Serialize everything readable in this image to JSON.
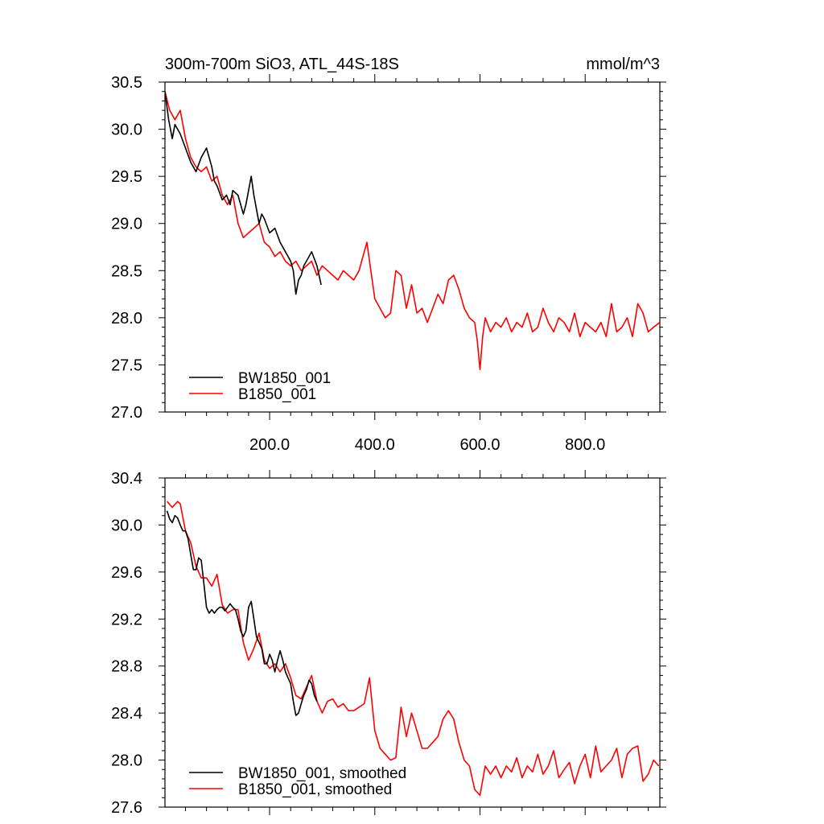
{
  "chart_data": [
    {
      "type": "line",
      "title": "300m-700m SiO3, ATL_44S-18S",
      "units": "mmol/m^3",
      "xlim": [
        1,
        942
      ],
      "ylim": [
        27.0,
        30.5
      ],
      "x_major_ticks": [
        200,
        400,
        600,
        800
      ],
      "x_tick_labels": [
        "200.0",
        "400.0",
        "600.0",
        "800.0"
      ],
      "y_major_ticks": [
        27.0,
        27.5,
        28.0,
        28.5,
        29.0,
        29.5,
        30.0,
        30.5
      ],
      "y_tick_labels": [
        "27.0",
        "27.5",
        "28.0",
        "28.5",
        "29.0",
        "29.5",
        "30.0",
        "30.5"
      ],
      "legend_position": "bottom-left",
      "series": [
        {
          "name": "BW1850_001",
          "color": "#000000",
          "x": [
            1,
            8,
            15,
            20,
            30,
            40,
            50,
            60,
            70,
            80,
            90,
            95,
            100,
            110,
            118,
            125,
            130,
            140,
            150,
            155,
            160,
            165,
            170,
            180,
            185,
            190,
            200,
            210,
            220,
            230,
            240,
            245,
            250,
            255,
            260,
            265,
            270,
            280,
            290,
            298
          ],
          "y": [
            30.4,
            30.1,
            29.9,
            30.05,
            29.95,
            29.8,
            29.65,
            29.55,
            29.7,
            29.8,
            29.6,
            29.45,
            29.4,
            29.25,
            29.3,
            29.2,
            29.35,
            29.3,
            29.1,
            29.2,
            29.35,
            29.5,
            29.3,
            29.0,
            29.1,
            29.05,
            28.9,
            28.95,
            28.8,
            28.7,
            28.6,
            28.5,
            28.25,
            28.4,
            28.45,
            28.55,
            28.6,
            28.7,
            28.55,
            28.35
          ]
        },
        {
          "name": "B1850_001",
          "color": "#ff0000",
          "x": [
            1,
            10,
            20,
            30,
            40,
            50,
            60,
            70,
            80,
            90,
            100,
            110,
            120,
            130,
            140,
            150,
            160,
            170,
            180,
            190,
            200,
            210,
            220,
            230,
            240,
            250,
            260,
            270,
            280,
            290,
            300,
            310,
            320,
            330,
            340,
            350,
            360,
            370,
            380,
            385,
            390,
            400,
            410,
            420,
            430,
            440,
            450,
            460,
            470,
            480,
            490,
            500,
            510,
            520,
            530,
            540,
            550,
            560,
            570,
            580,
            590,
            595,
            600,
            605,
            610,
            620,
            630,
            640,
            650,
            660,
            670,
            680,
            690,
            700,
            710,
            720,
            730,
            740,
            750,
            760,
            770,
            780,
            790,
            800,
            810,
            820,
            830,
            840,
            850,
            860,
            870,
            880,
            890,
            900,
            910,
            920,
            930,
            942
          ],
          "y": [
            30.4,
            30.2,
            30.1,
            30.2,
            29.9,
            29.7,
            29.6,
            29.55,
            29.6,
            29.45,
            29.5,
            29.3,
            29.2,
            29.3,
            29.0,
            28.85,
            28.9,
            28.95,
            29.0,
            28.8,
            28.75,
            28.65,
            28.7,
            28.6,
            28.55,
            28.6,
            28.5,
            28.55,
            28.6,
            28.45,
            28.55,
            28.5,
            28.45,
            28.4,
            28.5,
            28.45,
            28.4,
            28.5,
            28.7,
            28.8,
            28.6,
            28.2,
            28.1,
            28.0,
            28.05,
            28.5,
            28.45,
            28.1,
            28.35,
            28.05,
            28.1,
            27.95,
            28.1,
            28.25,
            28.15,
            28.4,
            28.45,
            28.3,
            28.1,
            28.0,
            27.95,
            27.75,
            27.45,
            27.8,
            28.0,
            27.85,
            27.95,
            27.9,
            28.0,
            27.85,
            27.95,
            27.9,
            28.05,
            27.85,
            27.9,
            28.1,
            27.95,
            27.85,
            28.0,
            27.95,
            27.85,
            28.05,
            27.8,
            27.95,
            27.9,
            27.85,
            27.95,
            27.8,
            28.15,
            27.85,
            27.9,
            28.0,
            27.8,
            28.15,
            28.05,
            27.85,
            27.9,
            27.95
          ]
        }
      ]
    },
    {
      "type": "line",
      "xlim": [
        1,
        942
      ],
      "ylim": [
        27.6,
        30.4
      ],
      "x_major_ticks": [
        200,
        400,
        600,
        800
      ],
      "y_major_ticks": [
        27.6,
        28.0,
        28.4,
        28.8,
        29.2,
        29.6,
        30.0,
        30.4
      ],
      "y_tick_labels": [
        "27.6",
        "28.0",
        "28.4",
        "28.8",
        "29.2",
        "29.6",
        "30.0",
        "30.4"
      ],
      "legend_position": "bottom-left",
      "series": [
        {
          "name": "BW1850_001, smoothed",
          "color": "#000000",
          "x": [
            5,
            10,
            15,
            20,
            25,
            30,
            35,
            40,
            45,
            50,
            55,
            60,
            65,
            70,
            75,
            80,
            85,
            90,
            95,
            100,
            105,
            110,
            115,
            120,
            125,
            130,
            135,
            140,
            145,
            150,
            155,
            160,
            165,
            170,
            175,
            180,
            185,
            190,
            195,
            200,
            205,
            210,
            215,
            220,
            225,
            230,
            235,
            240,
            245,
            250,
            255,
            260,
            265,
            270,
            275,
            280,
            285,
            290
          ],
          "y": [
            30.12,
            30.05,
            30.02,
            30.08,
            30.06,
            30.0,
            29.95,
            29.95,
            29.88,
            29.75,
            29.62,
            29.62,
            29.72,
            29.7,
            29.5,
            29.3,
            29.25,
            29.28,
            29.25,
            29.28,
            29.3,
            29.3,
            29.27,
            29.3,
            29.33,
            29.3,
            29.28,
            29.2,
            29.1,
            29.05,
            29.1,
            29.3,
            29.35,
            29.2,
            29.05,
            29.0,
            28.95,
            28.82,
            28.82,
            28.9,
            28.85,
            28.75,
            28.85,
            28.93,
            28.85,
            28.75,
            28.7,
            28.65,
            28.5,
            28.38,
            28.4,
            28.48,
            28.55,
            28.6,
            28.68,
            28.65,
            28.55,
            28.5
          ]
        },
        {
          "name": "B1850_001, smoothed",
          "color": "#ff0000",
          "x": [
            5,
            15,
            25,
            30,
            40,
            50,
            60,
            70,
            80,
            90,
            100,
            110,
            120,
            130,
            140,
            150,
            160,
            170,
            180,
            190,
            200,
            210,
            220,
            230,
            240,
            250,
            260,
            270,
            280,
            290,
            300,
            310,
            320,
            330,
            340,
            350,
            360,
            370,
            380,
            390,
            400,
            410,
            420,
            430,
            440,
            450,
            460,
            470,
            480,
            490,
            500,
            510,
            520,
            530,
            540,
            550,
            560,
            570,
            580,
            590,
            600,
            610,
            620,
            630,
            640,
            650,
            660,
            670,
            680,
            690,
            700,
            710,
            720,
            730,
            740,
            750,
            760,
            770,
            780,
            790,
            800,
            810,
            820,
            830,
            840,
            850,
            860,
            870,
            880,
            890,
            900,
            910,
            920,
            930,
            940
          ],
          "y": [
            30.2,
            30.15,
            30.2,
            30.18,
            29.95,
            29.85,
            29.65,
            29.55,
            29.55,
            29.48,
            29.58,
            29.32,
            29.25,
            29.28,
            29.28,
            29.0,
            28.85,
            28.95,
            29.08,
            28.85,
            28.78,
            28.82,
            28.75,
            28.82,
            28.7,
            28.55,
            28.52,
            28.62,
            28.72,
            28.5,
            28.4,
            28.5,
            28.52,
            28.45,
            28.48,
            28.42,
            28.42,
            28.45,
            28.48,
            28.7,
            28.25,
            28.1,
            28.05,
            28.0,
            28.02,
            28.45,
            28.2,
            28.4,
            28.25,
            28.1,
            28.1,
            28.15,
            28.2,
            28.35,
            28.42,
            28.35,
            28.15,
            28.0,
            27.95,
            27.75,
            27.7,
            27.95,
            27.88,
            27.95,
            27.85,
            27.95,
            27.9,
            28.02,
            27.85,
            27.95,
            27.9,
            28.05,
            27.88,
            27.95,
            28.08,
            27.85,
            27.92,
            27.98,
            27.8,
            27.95,
            28.05,
            27.85,
            28.12,
            27.9,
            27.95,
            28.0,
            28.1,
            27.85,
            28.05,
            28.1,
            28.12,
            27.82,
            27.88,
            28.0,
            27.95
          ]
        }
      ]
    }
  ]
}
